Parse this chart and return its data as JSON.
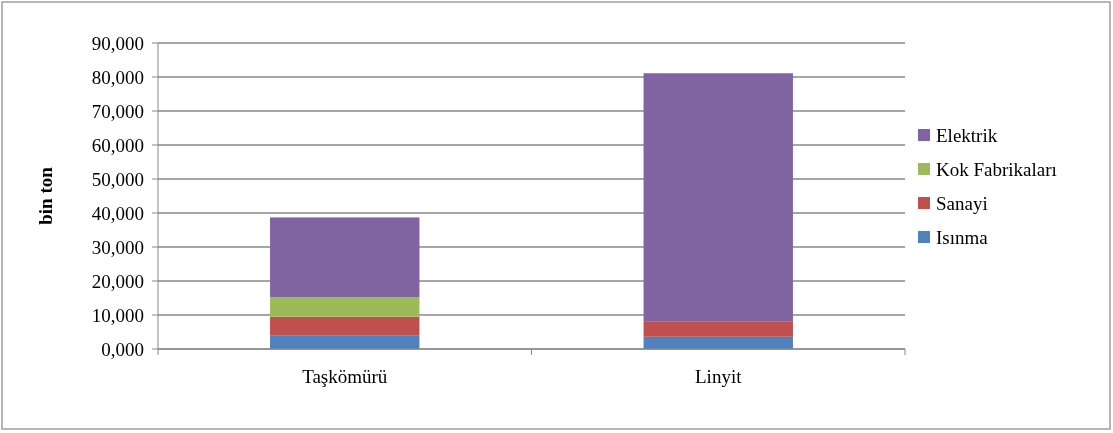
{
  "chart_data": {
    "type": "bar",
    "stacked": true,
    "ylabel": "bin ton",
    "categories": [
      "Taşkömürü",
      "Linyit"
    ],
    "series": [
      {
        "name": "Isınma",
        "color": "#4f81bd",
        "values": [
          3900,
          3600
        ]
      },
      {
        "name": "Sanayi",
        "color": "#c0504d",
        "values": [
          5600,
          4400
        ]
      },
      {
        "name": "Kok Fabrikaları",
        "color": "#9bbb59",
        "values": [
          5800,
          0
        ]
      },
      {
        "name": "Elektrik",
        "color": "#8064a2",
        "values": [
          23400,
          73100
        ]
      }
    ],
    "ylim": [
      0,
      90000
    ],
    "yticks": [
      {
        "value": 0,
        "label": "0,000"
      },
      {
        "value": 10000,
        "label": "10,000"
      },
      {
        "value": 20000,
        "label": "20,000"
      },
      {
        "value": 30000,
        "label": "30,000"
      },
      {
        "value": 40000,
        "label": "40,000"
      },
      {
        "value": 50000,
        "label": "50,000"
      },
      {
        "value": 60000,
        "label": "60,000"
      },
      {
        "value": 70000,
        "label": "70,000"
      },
      {
        "value": 80000,
        "label": "80,000"
      },
      {
        "value": 90000,
        "label": "90,000"
      }
    ],
    "grid": "y",
    "legend": "right"
  }
}
